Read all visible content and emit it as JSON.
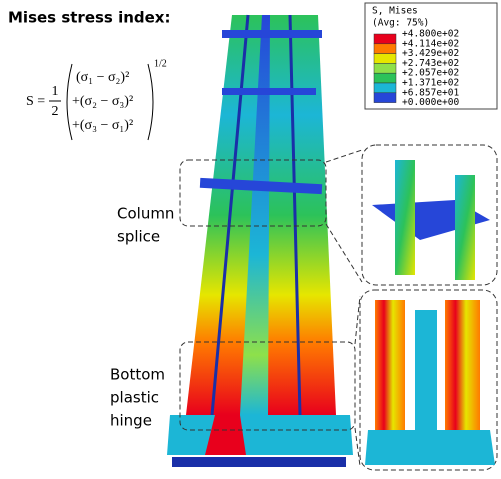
{
  "title": "Mises stress index:",
  "formula": {
    "lhs": "S =",
    "numerator": "1",
    "denominator": "2",
    "terms": [
      "(σ₁ − σ₂)²",
      "+(σ₂ − σ₃)²",
      "+(σ₃ − σ₁)²"
    ],
    "exponent": "1/2"
  },
  "legend": {
    "title": "S, Mises",
    "subtitle": "(Avg: 75%)",
    "labels": [
      "+4.800e+02",
      "+4.114e+02",
      "+3.429e+02",
      "+2.743e+02",
      "+2.057e+02",
      "+1.371e+02",
      "+6.857e+01",
      "+0.000e+00"
    ],
    "colors": [
      "#e8001c",
      "#ff7a00",
      "#e6e600",
      "#8ee04a",
      "#2cc25a",
      "#1cb6d6",
      "#2646d8"
    ]
  },
  "annotations": {
    "splice": [
      "Column",
      "splice"
    ],
    "hinge": [
      "Bottom",
      "plastic",
      "hinge"
    ]
  }
}
